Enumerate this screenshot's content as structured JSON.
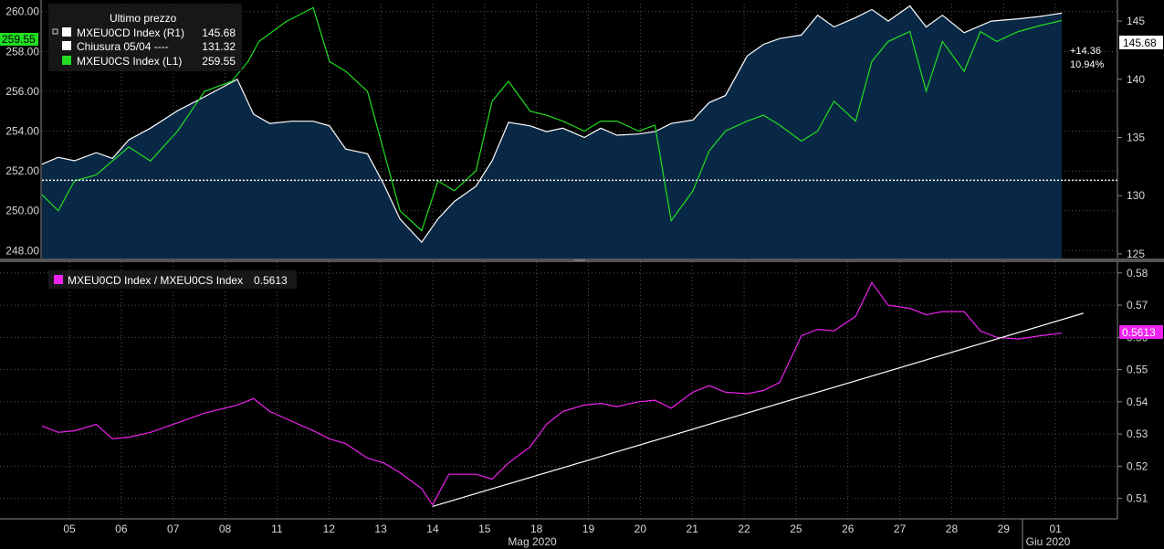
{
  "chart_data": [
    {
      "type": "line",
      "panel": "top",
      "legend_title": "Ultimo prezzo",
      "legend": [
        {
          "name": "MXEU0CD Index  (R1)",
          "value": "145.68",
          "color": "#ffffff"
        },
        {
          "name": "Chiusura 05/04 ----",
          "value": "131.32",
          "color": "#ffffff"
        },
        {
          "name": "MXEU0CS Index  (L1)",
          "value": "259.55",
          "color": "#22dd22"
        }
      ],
      "left_axis": {
        "ylim": [
          247.6,
          260.4
        ],
        "ticks": [
          "248.00",
          "250.00",
          "252.00",
          "254.00",
          "256.00",
          "258.00",
          "260.00"
        ],
        "current": "259.55"
      },
      "right_axis": {
        "ylim": [
          124.6,
          146.5
        ],
        "ticks": [
          "125",
          "130",
          "135",
          "140",
          "145"
        ],
        "current": "145.68"
      },
      "reference_line": 131.32,
      "change_abs": "+14.36",
      "change_pct": "10.94%",
      "series": [
        {
          "name": "MXEU0CD Index",
          "axis": "right",
          "color": "#ffffff",
          "x": [
            0,
            0.3,
            0.6,
            1,
            1.3,
            1.6,
            2,
            2.5,
            3,
            3.6,
            3.9,
            4.2,
            4.6,
            5,
            5.3,
            5.6,
            6,
            6.3,
            6.6,
            7,
            7.3,
            7.6,
            8,
            8.3,
            8.6,
            9,
            9.3,
            9.6,
            10,
            10.3,
            10.6,
            11,
            11.3,
            11.6,
            12,
            12.3,
            12.6,
            13,
            13.3,
            13.6,
            14,
            14.3,
            14.6,
            15,
            15.3,
            15.6,
            16,
            16.3,
            16.6,
            17,
            17.5,
            18,
            18.4,
            18.8
          ],
          "values": [
            132.7,
            133.3,
            133.0,
            133.7,
            133.2,
            134.8,
            135.8,
            137.3,
            138.5,
            140.0,
            137.0,
            136.2,
            136.4,
            136.4,
            136.0,
            134.0,
            133.6,
            131.0,
            128.0,
            126.0,
            128.0,
            129.5,
            130.8,
            133.0,
            136.3,
            136.0,
            135.5,
            135.8,
            135.0,
            135.8,
            135.2,
            135.3,
            135.5,
            136.2,
            136.5,
            138.0,
            138.6,
            142.0,
            143.0,
            143.5,
            143.8,
            145.5,
            144.5,
            145.3,
            146.0,
            145.0,
            146.3,
            144.5,
            145.5,
            144.0,
            145.0,
            145.2,
            145.4,
            145.68
          ]
        },
        {
          "name": "MXEU0CS Index",
          "axis": "left",
          "color": "#22dd22",
          "x": [
            0,
            0.3,
            0.6,
            1,
            1.3,
            1.6,
            2,
            2.5,
            3,
            3.5,
            3.8,
            4,
            4.5,
            5,
            5.3,
            5.6,
            6,
            6.3,
            6.6,
            7,
            7.3,
            7.6,
            8,
            8.3,
            8.6,
            9,
            9.3,
            9.6,
            10,
            10.3,
            10.6,
            11,
            11.3,
            11.6,
            12,
            12.3,
            12.6,
            13,
            13.3,
            13.6,
            14,
            14.3,
            14.6,
            15,
            15.3,
            15.6,
            16,
            16.3,
            16.6,
            17,
            17.3,
            17.6,
            18,
            18.4,
            18.8
          ],
          "values": [
            250.8,
            250.0,
            251.5,
            251.8,
            252.5,
            253.2,
            252.5,
            254.0,
            256.0,
            256.5,
            257.5,
            258.5,
            259.5,
            260.2,
            257.5,
            257.0,
            256.0,
            253.0,
            250.0,
            249.0,
            251.5,
            251.0,
            252.0,
            255.5,
            256.5,
            255.0,
            254.8,
            254.5,
            254.0,
            254.5,
            254.5,
            254.0,
            254.3,
            249.5,
            251.0,
            253.0,
            254.0,
            254.5,
            254.8,
            254.3,
            253.5,
            254.0,
            255.5,
            254.5,
            257.5,
            258.5,
            259.0,
            256.0,
            258.5,
            257.0,
            259.0,
            258.5,
            259.0,
            259.3,
            259.55
          ]
        }
      ]
    },
    {
      "type": "line",
      "panel": "bottom",
      "legend": [
        {
          "name": "MXEU0CD Index / MXEU0CS Index",
          "value": "0.5613",
          "color": "#ee22ee"
        }
      ],
      "right_axis": {
        "ylim": [
          0.5045,
          0.5825
        ],
        "ticks": [
          "0.51",
          "0.52",
          "0.53",
          "0.54",
          "0.55",
          "0.56",
          "0.57",
          "0.58"
        ],
        "current": "0.5613"
      },
      "series": [
        {
          "name": "MXEU0CD Index / MXEU0CS Index",
          "color": "#ee22ee",
          "x": [
            0,
            0.3,
            0.6,
            1,
            1.3,
            1.6,
            2,
            2.5,
            3,
            3.6,
            3.9,
            4.2,
            4.6,
            5,
            5.3,
            5.6,
            6,
            6.3,
            6.6,
            7,
            7.2,
            7.5,
            8,
            8.3,
            8.6,
            9,
            9.3,
            9.6,
            10,
            10.3,
            10.6,
            11,
            11.3,
            11.6,
            12,
            12.3,
            12.6,
            13,
            13.3,
            13.6,
            14,
            14.3,
            14.6,
            15,
            15.3,
            15.6,
            16,
            16.3,
            16.6,
            17,
            17.3,
            17.6,
            18,
            18.4,
            18.8
          ],
          "values": [
            0.5325,
            0.5305,
            0.531,
            0.533,
            0.5285,
            0.529,
            0.5305,
            0.5335,
            0.5365,
            0.539,
            0.541,
            0.537,
            0.534,
            0.531,
            0.5285,
            0.527,
            0.5225,
            0.521,
            0.518,
            0.513,
            0.508,
            0.5175,
            0.5175,
            0.516,
            0.521,
            0.526,
            0.533,
            0.537,
            0.539,
            0.5395,
            0.5385,
            0.54,
            0.5405,
            0.538,
            0.543,
            0.545,
            0.543,
            0.5425,
            0.5435,
            0.546,
            0.5605,
            0.5625,
            0.562,
            0.5665,
            0.577,
            0.57,
            0.569,
            0.567,
            0.568,
            0.568,
            0.562,
            0.56,
            0.5595,
            0.5605,
            0.5613
          ]
        }
      ],
      "trendline": {
        "x": [
          7.2,
          19.2
        ],
        "values": [
          0.5075,
          0.5675
        ]
      }
    }
  ],
  "x_axis": {
    "ticks": [
      "05",
      "06",
      "07",
      "08",
      "11",
      "12",
      "13",
      "14",
      "15",
      "18",
      "19",
      "20",
      "21",
      "22",
      "25",
      "26",
      "27",
      "28",
      "29",
      "01"
    ],
    "month_labels": [
      "Mag 2020",
      "Giu 2020"
    ]
  }
}
